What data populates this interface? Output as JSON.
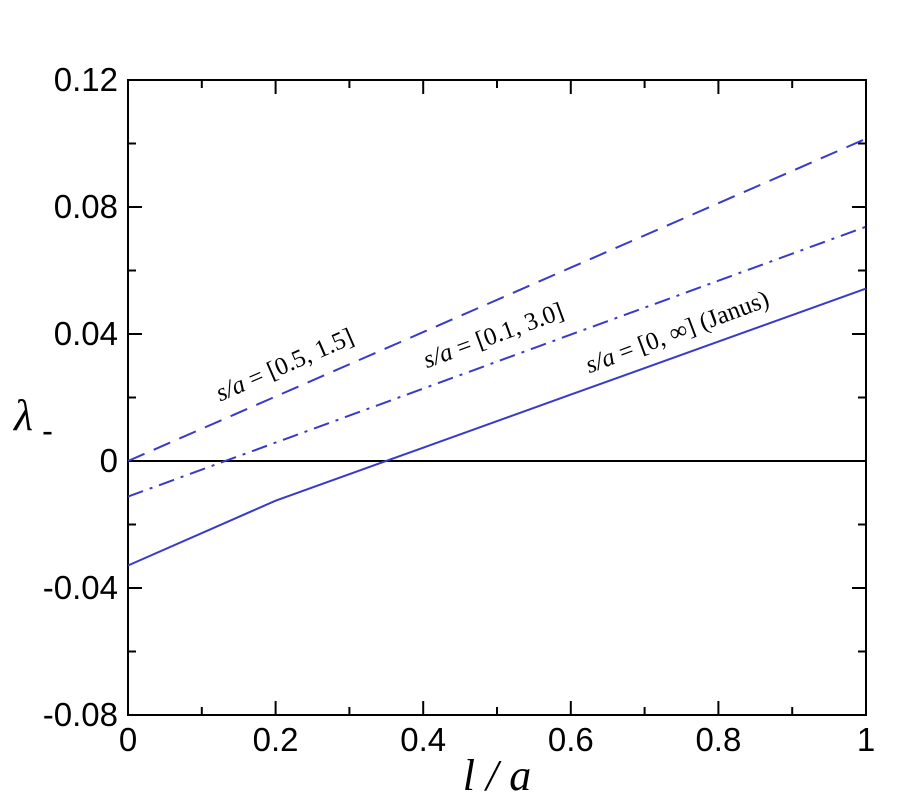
{
  "chart_data": {
    "type": "line",
    "xlabel": "l / a",
    "ylabel": "λ",
    "ylabel_sub": "-",
    "xlim": [
      0,
      1
    ],
    "ylim": [
      -0.08,
      0.12
    ],
    "x_ticks": [
      "0",
      "0.2",
      "0.4",
      "0.6",
      "0.8",
      "1"
    ],
    "y_ticks": [
      "-0.08",
      "-0.04",
      "0",
      "0.04",
      "0.08",
      "0.12"
    ],
    "grid": false,
    "series": [
      {
        "name": "s/a = [0.5, 1.5]",
        "style": "dashed",
        "color": "#3a3ac8",
        "x": [
          0,
          0.2,
          0.4,
          0.6,
          0.8,
          1.0
        ],
        "y": [
          0.0,
          0.0203,
          0.0406,
          0.0609,
          0.0812,
          0.1015
        ]
      },
      {
        "name": "s/a = [0.1, 3.0]",
        "style": "dashdot",
        "color": "#3a3ac8",
        "x": [
          0,
          0.2,
          0.4,
          0.6,
          0.8,
          1.0
        ],
        "y": [
          -0.0112,
          0.0058,
          0.0228,
          0.0398,
          0.0568,
          0.0738
        ]
      },
      {
        "name": "s/a = [0, ∞] (Janus)",
        "style": "solid",
        "color": "#3a3ac8",
        "x": [
          0,
          0.2,
          0.4,
          0.6,
          0.8,
          1.0
        ],
        "y": [
          -0.0329,
          -0.0125,
          0.0042,
          0.0209,
          0.0376,
          0.0543
        ]
      }
    ],
    "reference_line": {
      "y": 0,
      "color": "#000000"
    },
    "annotations": [
      {
        "series": 0,
        "pre": "s/a",
        "post": " = [0.5, 1.5]"
      },
      {
        "series": 1,
        "pre": "s/a",
        "post": " = [0.1, 3.0]"
      },
      {
        "series": 2,
        "pre": "s/a",
        "post": " = [0, ∞] (Janus)"
      }
    ]
  }
}
